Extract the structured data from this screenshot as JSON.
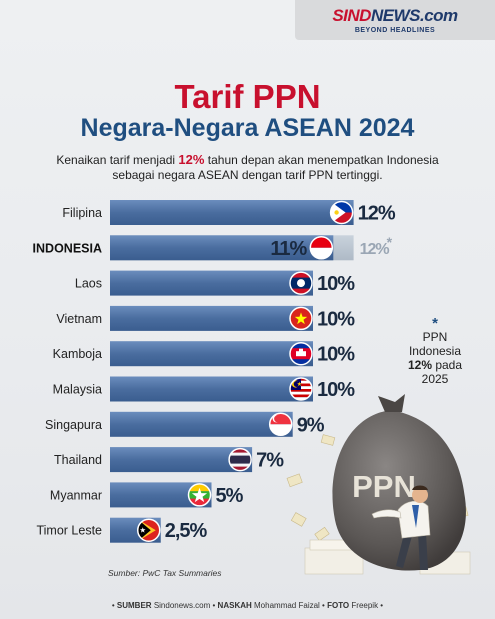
{
  "brand": {
    "logo_red": "SIND",
    "logo_dark": "NEWS.com",
    "tagline": "BEYOND HEADLINES"
  },
  "title": {
    "line1": "Tarif PPN",
    "line2": "Negara-Negara ASEAN 2024"
  },
  "subtitle": {
    "part1": "Kenaikan tarif menjadi ",
    "highlight": "12%",
    "part2": " tahun depan akan menempatkan Indonesia",
    "line2": "sebagai negara ASEAN dengan tarif PPN tertinggi."
  },
  "chart_data": {
    "type": "bar",
    "orientation": "horizontal",
    "categories": [
      "Filipina",
      "INDONESIA",
      "Laos",
      "Vietnam",
      "Kamboja",
      "Malaysia",
      "Singapura",
      "Thailand",
      "Myanmar",
      "Timor Leste"
    ],
    "values": [
      12,
      11,
      10,
      10,
      10,
      10,
      9,
      7,
      5,
      2.5
    ],
    "value_labels": [
      "12%",
      "11%",
      "10%",
      "10%",
      "10%",
      "10%",
      "9%",
      "7%",
      "5%",
      "2,5%"
    ],
    "projection": {
      "category": "INDONESIA",
      "value": 12,
      "label": "12%",
      "marker": "*"
    },
    "xlim": [
      0,
      12
    ],
    "bar_color": "#4a6d9f",
    "flags": [
      "flag-philippines-icon",
      "flag-indonesia-icon",
      "flag-laos-icon",
      "flag-vietnam-icon",
      "flag-cambodia-icon",
      "flag-malaysia-icon",
      "flag-singapore-icon",
      "flag-thailand-icon",
      "flag-myanmar-icon",
      "flag-timor-leste-icon"
    ]
  },
  "note": {
    "star": "*",
    "line1": "PPN",
    "line2": "Indonesia",
    "line3_bold": "12%",
    "line3_rest": " pada",
    "line4": "2025"
  },
  "illustration": {
    "sack_label": "PPN"
  },
  "source": "Sumber: PwC Tax Summaries",
  "footer": {
    "sumber_label": "SUMBER",
    "sumber_value": "Sindonews.com",
    "naskah_label": "NASKAH",
    "naskah_value": "Mohammad Faizal",
    "foto_label": "FOTO",
    "foto_value": "Freepik"
  }
}
